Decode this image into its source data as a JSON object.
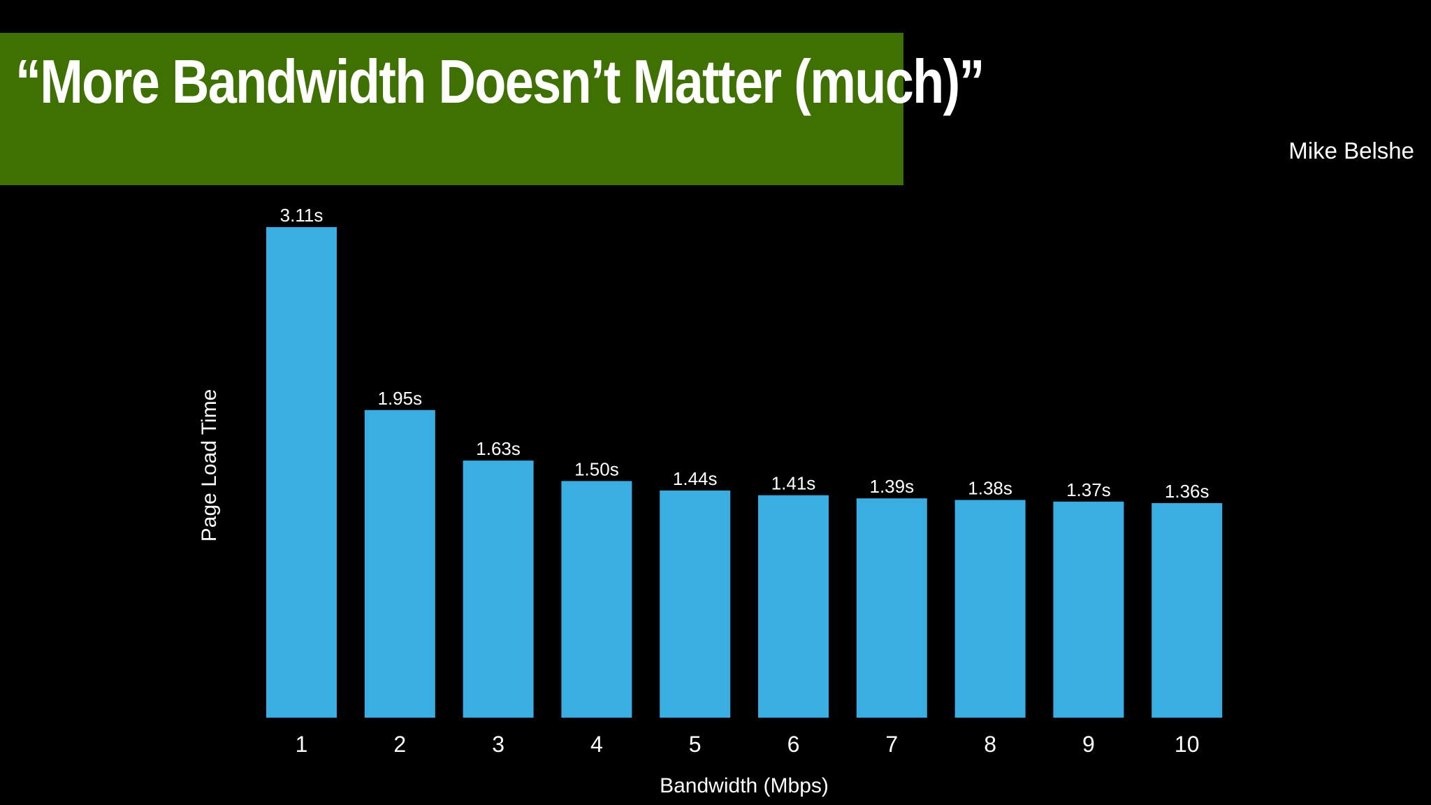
{
  "header": {
    "title": "“More Bandwidth Doesn’t Matter (much)”",
    "subtitle": "Mike Belshe"
  },
  "colors": {
    "background": "#000000",
    "banner": "#3f7102",
    "bar": "#3aaee2",
    "text": "#ffffff"
  },
  "chart_data": {
    "type": "bar",
    "title": "“More Bandwidth Doesn’t Matter (much)”",
    "subtitle": "Mike Belshe",
    "xlabel": "Bandwidth (Mbps)",
    "ylabel": "Page Load Time",
    "categories": [
      "1",
      "2",
      "3",
      "4",
      "5",
      "6",
      "7",
      "8",
      "9",
      "10"
    ],
    "values": [
      3.11,
      1.95,
      1.63,
      1.5,
      1.44,
      1.41,
      1.39,
      1.38,
      1.37,
      1.36
    ],
    "data_labels": [
      "3.11s",
      "1.95s",
      "1.63s",
      "1.50s",
      "1.44s",
      "1.41s",
      "1.39s",
      "1.38s",
      "1.37s",
      "1.36s"
    ],
    "ylim": [
      0,
      3.11
    ],
    "grid": false,
    "legend": "none"
  }
}
